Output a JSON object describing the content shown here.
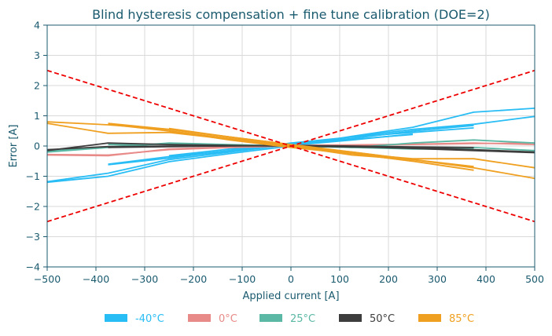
{
  "chart_data": {
    "type": "line",
    "title": "Blind hysteresis compensation + fine tune calibration (DOE=2)",
    "xlabel": "Applied current [A]",
    "ylabel": "Error [A]",
    "xlim": [
      -500,
      500
    ],
    "ylim": [
      -4,
      4
    ],
    "xticks": [
      -500,
      -400,
      -300,
      -200,
      -100,
      0,
      100,
      200,
      300,
      400,
      500
    ],
    "yticks": [
      -4,
      -3,
      -2,
      -1,
      0,
      1,
      2,
      3,
      4
    ],
    "xtick_labels": [
      "−500",
      "−400",
      "−300",
      "−200",
      "−100",
      "0",
      "100",
      "200",
      "300",
      "400",
      "500"
    ],
    "ytick_labels": [
      "−4",
      "−3",
      "−2",
      "−1",
      "0",
      "1",
      "2",
      "3",
      "4"
    ],
    "grid": true,
    "legend_position": "bottom",
    "limits": [
      {
        "x": [
          -500,
          500
        ],
        "y": [
          2.5,
          -2.5
        ],
        "color": "#ee0000"
      },
      {
        "x": [
          -500,
          500
        ],
        "y": [
          -2.5,
          2.5
        ],
        "color": "#ee0000"
      }
    ],
    "series": [
      {
        "name": "-40°C",
        "color": "#29bdf5",
        "curves": [
          {
            "x": [
              -500,
              -375,
              -250,
              -125,
              0,
              125,
              250,
              375,
              500
            ],
            "y": [
              -1.2,
              -1.0,
              -0.52,
              -0.25,
              0.0,
              0.32,
              0.62,
              1.12,
              1.25
            ]
          },
          {
            "x": [
              -500,
              -375,
              -250,
              -125,
              0,
              125,
              250,
              375,
              500
            ],
            "y": [
              -1.18,
              -0.9,
              -0.45,
              -0.2,
              0.05,
              0.3,
              0.55,
              0.72,
              0.98
            ]
          },
          {
            "x": [
              -375,
              -250,
              -125,
              0,
              125,
              250,
              375
            ],
            "y": [
              -0.62,
              -0.4,
              -0.15,
              0.05,
              0.25,
              0.5,
              0.68
            ]
          },
          {
            "x": [
              -375,
              -250,
              -125,
              0,
              125,
              250,
              375
            ],
            "y": [
              -0.6,
              -0.35,
              -0.18,
              0.1,
              0.3,
              0.45,
              0.6
            ]
          },
          {
            "x": [
              -250,
              -125,
              0,
              125,
              250
            ],
            "y": [
              -0.35,
              -0.15,
              0.08,
              0.22,
              0.38
            ]
          },
          {
            "x": [
              -250,
              -125,
              0,
              125,
              250
            ],
            "y": [
              -0.32,
              -0.1,
              0.02,
              0.2,
              0.4
            ]
          }
        ]
      },
      {
        "name": "0°C",
        "color": "#e88a88",
        "curves": [
          {
            "x": [
              -500,
              -375,
              -250,
              -125,
              0,
              125,
              250,
              375,
              500
            ],
            "y": [
              -0.28,
              -0.3,
              -0.12,
              -0.05,
              0.0,
              0.02,
              0.05,
              0.08,
              0.1
            ]
          },
          {
            "x": [
              -500,
              -375,
              -250,
              -125,
              0,
              125,
              250,
              375,
              500
            ],
            "y": [
              -0.3,
              -0.32,
              -0.1,
              -0.03,
              0.02,
              0.04,
              0.06,
              0.1,
              0.05
            ]
          }
        ]
      },
      {
        "name": "25°C",
        "color": "#5ab8a4",
        "curves": [
          {
            "x": [
              -500,
              -375,
              -250,
              -125,
              0,
              125,
              250,
              375,
              500
            ],
            "y": [
              -0.2,
              -0.05,
              0.1,
              0.05,
              0.0,
              -0.05,
              0.1,
              0.2,
              0.1
            ]
          },
          {
            "x": [
              -500,
              -375,
              -250,
              -125,
              0,
              125,
              250,
              375,
              500
            ],
            "y": [
              -0.18,
              -0.02,
              0.08,
              0.02,
              0.0,
              -0.03,
              -0.08,
              -0.05,
              -0.15
            ]
          },
          {
            "x": [
              -375,
              -250,
              -125,
              0,
              125,
              250,
              375
            ],
            "y": [
              0.05,
              0.06,
              0.04,
              0.0,
              -0.05,
              -0.1,
              -0.1
            ]
          }
        ]
      },
      {
        "name": "50°C",
        "color": "#3d3d3d",
        "curves": [
          {
            "x": [
              -500,
              -375,
              -250,
              -125,
              0,
              125,
              250,
              375,
              500
            ],
            "y": [
              -0.15,
              0.1,
              0.05,
              0.02,
              0.0,
              -0.03,
              -0.05,
              -0.12,
              -0.2
            ]
          },
          {
            "x": [
              -500,
              -375,
              -250,
              -125,
              0,
              125,
              250,
              375,
              500
            ],
            "y": [
              -0.12,
              -0.02,
              0.0,
              0.01,
              0.0,
              -0.02,
              -0.08,
              -0.15,
              -0.22
            ]
          },
          {
            "x": [
              -375,
              -250,
              -125,
              0,
              125,
              250,
              375
            ],
            "y": [
              -0.05,
              -0.02,
              0.0,
              0.02,
              0.0,
              -0.03,
              -0.05
            ]
          }
        ]
      },
      {
        "name": "85°C",
        "color": "#f0a020",
        "curves": [
          {
            "x": [
              -500,
              -375,
              -250,
              -125,
              0,
              125,
              250,
              375,
              500
            ],
            "y": [
              0.8,
              0.7,
              0.55,
              0.3,
              0.05,
              -0.2,
              -0.45,
              -0.72,
              -1.07
            ]
          },
          {
            "x": [
              -500,
              -375,
              -250,
              -125,
              0,
              125,
              250,
              375,
              500
            ],
            "y": [
              0.75,
              0.42,
              0.45,
              0.22,
              0.0,
              -0.25,
              -0.42,
              -0.42,
              -0.72
            ]
          },
          {
            "x": [
              -375,
              -250,
              -125,
              0,
              125,
              250,
              375
            ],
            "y": [
              0.75,
              0.55,
              0.3,
              0.05,
              -0.25,
              -0.5,
              -0.8
            ]
          },
          {
            "x": [
              -375,
              -250,
              -125,
              0,
              125,
              250,
              375
            ],
            "y": [
              0.72,
              0.5,
              0.25,
              0.0,
              -0.2,
              -0.45,
              -0.68
            ]
          },
          {
            "x": [
              -250,
              -125,
              0,
              125,
              250
            ],
            "y": [
              0.58,
              0.3,
              0.0,
              -0.3,
              -0.45
            ]
          },
          {
            "x": [
              -250,
              -125,
              0,
              125,
              250
            ],
            "y": [
              0.5,
              0.2,
              -0.05,
              -0.25,
              -0.5
            ]
          }
        ]
      }
    ]
  }
}
